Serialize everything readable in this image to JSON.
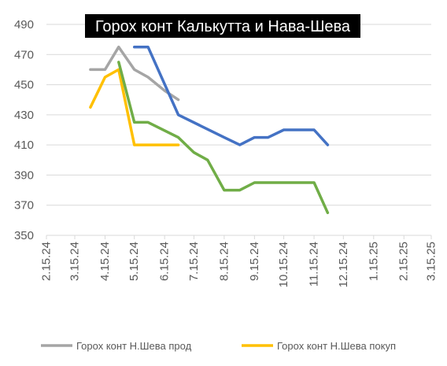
{
  "chart_data": {
    "type": "line",
    "title": "Горох конт Калькутта и Нава-Шева",
    "xlabel": "",
    "ylabel": "",
    "x_ticks": [
      "2.15.24",
      "3.15.24",
      "4.15.24",
      "5.15.24",
      "6.15.24",
      "7.15.24",
      "8.15.24",
      "9.15.24",
      "10.15.24",
      "11.15.24",
      "12.15.24",
      "1.15.25",
      "2.15.25",
      "3.15.25"
    ],
    "y_ticks": [
      350,
      370,
      390,
      410,
      430,
      450,
      470,
      490
    ],
    "ylim": [
      350,
      490
    ],
    "grid": "horizontal",
    "legend_position": "bottom",
    "series": [
      {
        "name": "Горох конт Н.Шева прод",
        "color": "#a5a5a5",
        "points": [
          {
            "x": "2024-03-31",
            "y": 460
          },
          {
            "x": "2024-04-15",
            "y": 460
          },
          {
            "x": "2024-04-29",
            "y": 475
          },
          {
            "x": "2024-05-15",
            "y": 460
          },
          {
            "x": "2024-05-29",
            "y": 455
          },
          {
            "x": "2024-06-15",
            "y": 446
          },
          {
            "x": "2024-06-29",
            "y": 440
          }
        ]
      },
      {
        "name": "Горох конт Н.Шева покуп",
        "color": "#ffc000",
        "points": [
          {
            "x": "2024-03-31",
            "y": 435
          },
          {
            "x": "2024-04-15",
            "y": 455
          },
          {
            "x": "2024-04-29",
            "y": 460
          },
          {
            "x": "2024-05-15",
            "y": 410
          },
          {
            "x": "2024-05-29",
            "y": 410
          },
          {
            "x": "2024-06-15",
            "y": 410
          },
          {
            "x": "2024-06-29",
            "y": 410
          }
        ]
      },
      {
        "color": "#4472c4",
        "points": [
          {
            "x": "2024-05-15",
            "y": 475
          },
          {
            "x": "2024-05-29",
            "y": 475
          },
          {
            "x": "2024-06-29",
            "y": 430
          },
          {
            "x": "2024-08-15",
            "y": 415
          },
          {
            "x": "2024-08-31",
            "y": 410
          },
          {
            "x": "2024-09-15",
            "y": 415
          },
          {
            "x": "2024-09-29",
            "y": 415
          },
          {
            "x": "2024-10-15",
            "y": 420
          },
          {
            "x": "2024-10-29",
            "y": 420
          },
          {
            "x": "2024-11-15",
            "y": 420
          },
          {
            "x": "2024-11-29",
            "y": 410
          }
        ]
      },
      {
        "color": "#70ad47",
        "points": [
          {
            "x": "2024-04-29",
            "y": 465
          },
          {
            "x": "2024-05-15",
            "y": 425
          },
          {
            "x": "2024-05-29",
            "y": 425
          },
          {
            "x": "2024-06-29",
            "y": 415
          },
          {
            "x": "2024-07-15",
            "y": 405
          },
          {
            "x": "2024-07-29",
            "y": 400
          },
          {
            "x": "2024-08-15",
            "y": 380
          },
          {
            "x": "2024-08-31",
            "y": 380
          },
          {
            "x": "2024-09-15",
            "y": 385
          },
          {
            "x": "2024-09-29",
            "y": 385
          },
          {
            "x": "2024-10-15",
            "y": 385
          },
          {
            "x": "2024-10-29",
            "y": 385
          },
          {
            "x": "2024-11-15",
            "y": 385
          },
          {
            "x": "2024-11-29",
            "y": 365
          }
        ]
      }
    ]
  }
}
